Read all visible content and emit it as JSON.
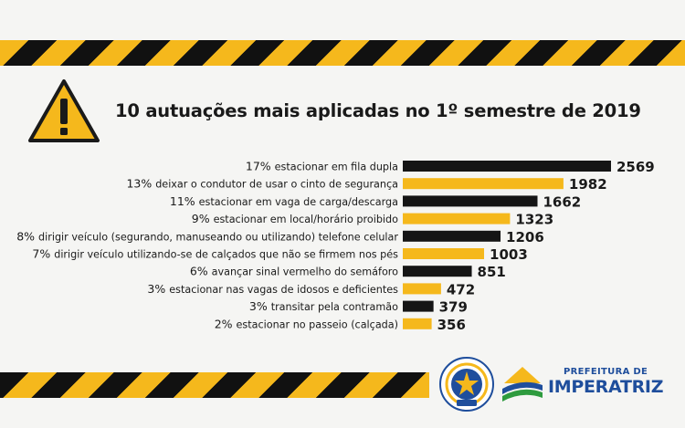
{
  "header": {
    "title": "10 autuações mais aplicadas no 1º semestre de 2019"
  },
  "chart_data": {
    "type": "bar",
    "orientation": "horizontal",
    "title": "10 autuações mais aplicadas no 1º semestre de 2019",
    "categories": [
      "17% estacionar em fila dupla",
      "13% deixar o condutor de usar o cinto de segurança",
      "11% estacionar em vaga de carga/descarga",
      "9% estacionar em local/horário proibido",
      "8% dirigir veículo (segurando, manuseando ou utilizando) telefone celular",
      "7% dirigir veículo utilizando-se de calçados que não se firmem nos pés",
      "6% avançar sinal vermelho do semáforo",
      "3% estacionar nas vagas de idosos e deficientes",
      "3% transitar pela contramão",
      "2% estacionar no passeio (calçada)"
    ],
    "percent_labels": [
      "17%",
      "13%",
      "11%",
      "9%",
      "8%",
      "7%",
      "6%",
      "3%",
      "3%",
      "2%"
    ],
    "descriptions": [
      "estacionar em fila dupla",
      "deixar o condutor de usar o cinto de segurança",
      "estacionar em vaga de carga/descarga",
      "estacionar em local/horário proibido",
      "dirigir veículo (segurando, manuseando ou utilizando) telefone celular",
      "dirigir veículo utilizando-se de calçados que não se firmem nos pés",
      "avançar sinal vermelho do semáforo",
      "estacionar nas vagas de idosos e deficientes",
      "transitar pela contramão",
      "estacionar no passeio (calçada)"
    ],
    "values": [
      2569,
      1982,
      1662,
      1323,
      1206,
      1003,
      851,
      472,
      379,
      356
    ],
    "bar_colors": [
      "#151515",
      "#f5b81c",
      "#151515",
      "#f5b81c",
      "#151515",
      "#f5b81c",
      "#151515",
      "#f5b81c",
      "#151515",
      "#f5b81c"
    ],
    "xlim": [
      0,
      2569
    ],
    "grid": false,
    "legend": "none"
  },
  "footer": {
    "seal_label": "Seal",
    "prefeitura_small": "PREFEITURA DE",
    "prefeitura_big": "IMPERATRIZ"
  },
  "colors": {
    "accent_yellow": "#f5b81c",
    "dark": "#151515",
    "brand_blue": "#1f4e9c",
    "brand_green": "#2e9b3e"
  }
}
